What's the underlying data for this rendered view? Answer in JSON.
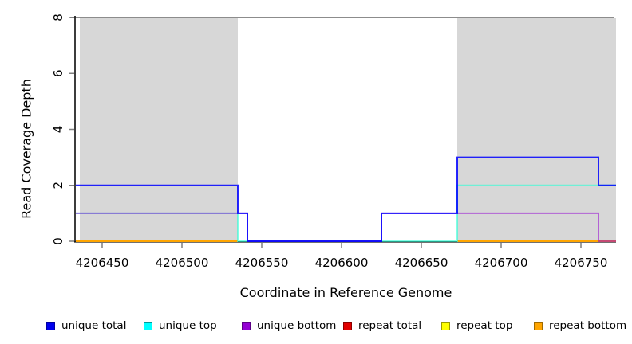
{
  "figure": {
    "background": "#FFFFFF",
    "xlabel": "Coordinate in Reference Genome",
    "ylabel": "Read Coverage Depth"
  },
  "legend": {
    "items": [
      {
        "label": "unique total",
        "fill": "#0000EE",
        "border": "#0000A0"
      },
      {
        "label": "unique top",
        "fill": "#00FFFF",
        "border": "#009A9A"
      },
      {
        "label": "unique bottom",
        "fill": "#9400D3",
        "border": "#5C0085"
      },
      {
        "label": "repeat total",
        "fill": "#E00000",
        "border": "#8B0000"
      },
      {
        "label": "repeat top",
        "fill": "#FFFF00",
        "border": "#9A9A00"
      },
      {
        "label": "repeat bottom",
        "fill": "#FFA500",
        "border": "#A06A00"
      }
    ]
  },
  "chart_data": {
    "type": "line",
    "subtype": "step-coverage",
    "title": "",
    "xlabel": "Coordinate in Reference Genome",
    "ylabel": "Read Coverage Depth",
    "xlim": [
      4206433.5,
      4206772
    ],
    "ylim": [
      0,
      8
    ],
    "x_ticks": [
      4206450,
      4206500,
      4206550,
      4206600,
      4206650,
      4206700,
      4206750
    ],
    "y_ticks": [
      0,
      2,
      4,
      6,
      8
    ],
    "grid": false,
    "legend_position": "bottom",
    "axis_color": "#1A1A1A",
    "tick_color": "#7F7F7F",
    "region_fill": "#D7D7D7",
    "repeat_regions": [
      [
        4206436,
        4206535
      ],
      [
        4206672.5,
        4206772
      ]
    ],
    "top_boundary_line": {
      "value": 8,
      "from": 4206430,
      "to": 4206771,
      "color": "#8C8C8C"
    },
    "draw_order": [
      "repeat total",
      "repeat top",
      "repeat bottom",
      "unique top",
      "unique bottom",
      "unique total"
    ],
    "series": [
      {
        "name": "unique total",
        "color": "#0000FF",
        "opacity": 0.85,
        "width": 2,
        "lines": [
          [
            [
              4206433.5,
              2
            ],
            [
              4206535,
              2
            ],
            [
              4206535,
              1
            ],
            [
              4206541,
              1
            ],
            [
              4206541,
              0
            ],
            [
              4206625,
              0
            ],
            [
              4206625,
              1
            ],
            [
              4206672.5,
              1
            ],
            [
              4206672.5,
              3
            ],
            [
              4206761,
              3
            ],
            [
              4206761,
              2
            ],
            [
              4206772,
              2
            ]
          ]
        ]
      },
      {
        "name": "unique top",
        "color": "#2AFFD5",
        "opacity": 0.6,
        "width": 2,
        "lines": [
          [
            [
              4206433.5,
              1
            ],
            [
              4206535,
              1
            ],
            [
              4206535,
              0
            ],
            [
              4206672.5,
              0
            ],
            [
              4206672.5,
              2
            ],
            [
              4206772,
              2
            ]
          ]
        ]
      },
      {
        "name": "unique bottom",
        "color": "#9400D3",
        "opacity": 0.55,
        "width": 2,
        "lines": [
          [
            [
              4206433.5,
              1
            ],
            [
              4206541,
              1
            ],
            [
              4206541,
              0
            ],
            [
              4206625,
              0
            ],
            [
              4206625,
              1
            ],
            [
              4206761,
              1
            ],
            [
              4206761,
              0
            ],
            [
              4206772,
              0
            ]
          ]
        ]
      },
      {
        "name": "repeat total",
        "color": "#E00000",
        "opacity": 1,
        "width": 2,
        "lines": [
          [
            [
              4206433.5,
              0
            ],
            [
              4206535,
              0
            ]
          ],
          [
            [
              4206672.5,
              0
            ],
            [
              4206772,
              0
            ]
          ]
        ]
      },
      {
        "name": "repeat top",
        "color": "#FFFF00",
        "opacity": 1,
        "width": 2,
        "lines": [
          [
            [
              4206433.5,
              0
            ],
            [
              4206535,
              0
            ]
          ],
          [
            [
              4206672.5,
              0
            ],
            [
              4206772,
              0
            ]
          ]
        ]
      },
      {
        "name": "repeat bottom",
        "color": "#FFA500",
        "opacity": 1,
        "width": 2,
        "lines": [
          [
            [
              4206433.5,
              0
            ],
            [
              4206535,
              0
            ]
          ],
          [
            [
              4206672.5,
              0
            ],
            [
              4206772,
              0
            ]
          ]
        ]
      }
    ]
  }
}
